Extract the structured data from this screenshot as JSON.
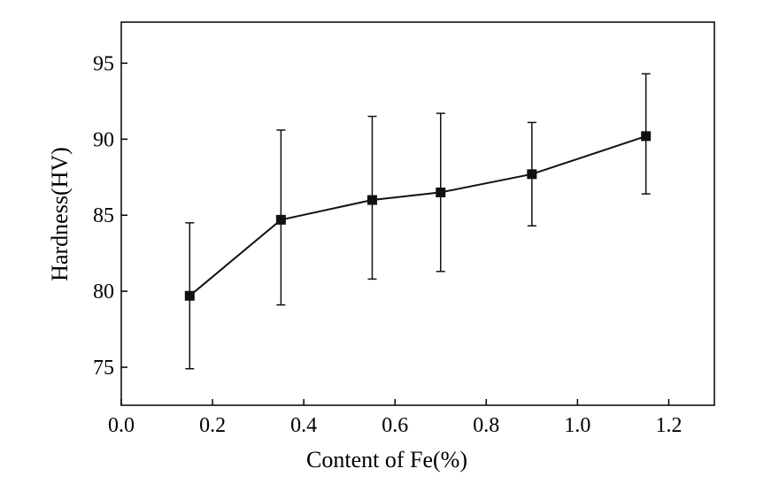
{
  "chart_data": {
    "type": "line",
    "title": "",
    "xlabel": "Content of Fe(%)",
    "ylabel": "Hardness(HV)",
    "xlim": [
      0.0,
      1.3
    ],
    "ylim": [
      72.5,
      97.7
    ],
    "x_ticks": [
      0.0,
      0.2,
      0.4,
      0.6,
      0.8,
      1.0,
      1.2
    ],
    "x_tick_labels": [
      "0.0",
      "0.2",
      "0.4",
      "0.6",
      "0.8",
      "1.0",
      "1.2"
    ],
    "y_ticks": [
      75,
      80,
      85,
      90,
      95
    ],
    "y_tick_labels": [
      "75",
      "80",
      "85",
      "90",
      "95"
    ],
    "grid": false,
    "marker": "square",
    "color": "#111111",
    "series": [
      {
        "x": [
          0.15,
          0.35,
          0.55,
          0.7,
          0.9,
          1.15
        ],
        "y": [
          79.7,
          84.7,
          86.0,
          86.5,
          87.7,
          90.2
        ],
        "error_low": [
          74.9,
          79.1,
          80.8,
          81.3,
          84.3,
          86.4
        ],
        "error_high": [
          84.5,
          90.6,
          91.5,
          91.7,
          91.1,
          94.3
        ]
      }
    ]
  }
}
